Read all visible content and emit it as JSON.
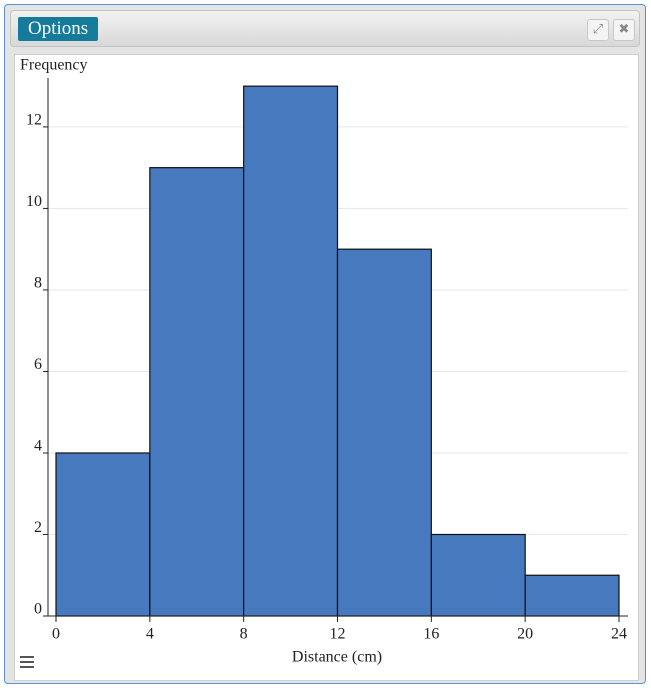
{
  "window": {
    "button": "Options"
  },
  "chart_data": {
    "type": "histogram",
    "ylabel": "Frequency",
    "xlabel": "Distance (cm)",
    "bins": [
      0,
      4,
      8,
      12,
      16,
      20,
      24
    ],
    "values": [
      4,
      11,
      13,
      9,
      2,
      1
    ],
    "color": "#4679bd",
    "xlim": [
      0,
      24
    ],
    "xticks": [
      0,
      4,
      8,
      12,
      16,
      20,
      24
    ],
    "ylim": [
      0,
      13.2
    ],
    "yticks": [
      0,
      2,
      4,
      6,
      8,
      10,
      12
    ],
    "grid": true
  }
}
